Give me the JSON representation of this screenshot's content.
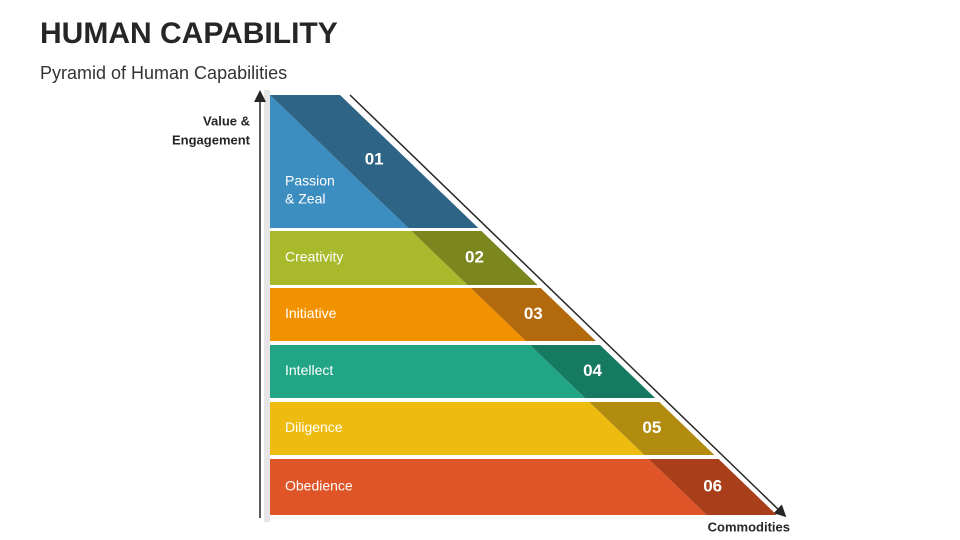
{
  "header": {
    "title": "HUMAN CAPABILITY",
    "subtitle": "Pyramid of Human Capabilities"
  },
  "axes": {
    "y_label": [
      "Value &",
      "Engagement"
    ],
    "x_label": "Commodities"
  },
  "levels": [
    {
      "number": "01",
      "label": [
        "Passion",
        "& Zeal"
      ]
    },
    {
      "number": "02",
      "label": [
        "Creativity"
      ]
    },
    {
      "number": "03",
      "label": [
        "Initiative"
      ]
    },
    {
      "number": "04",
      "label": [
        "Intellect"
      ]
    },
    {
      "number": "05",
      "label": [
        "Diligence"
      ]
    },
    {
      "number": "06",
      "label": [
        "Obedience"
      ]
    }
  ]
}
